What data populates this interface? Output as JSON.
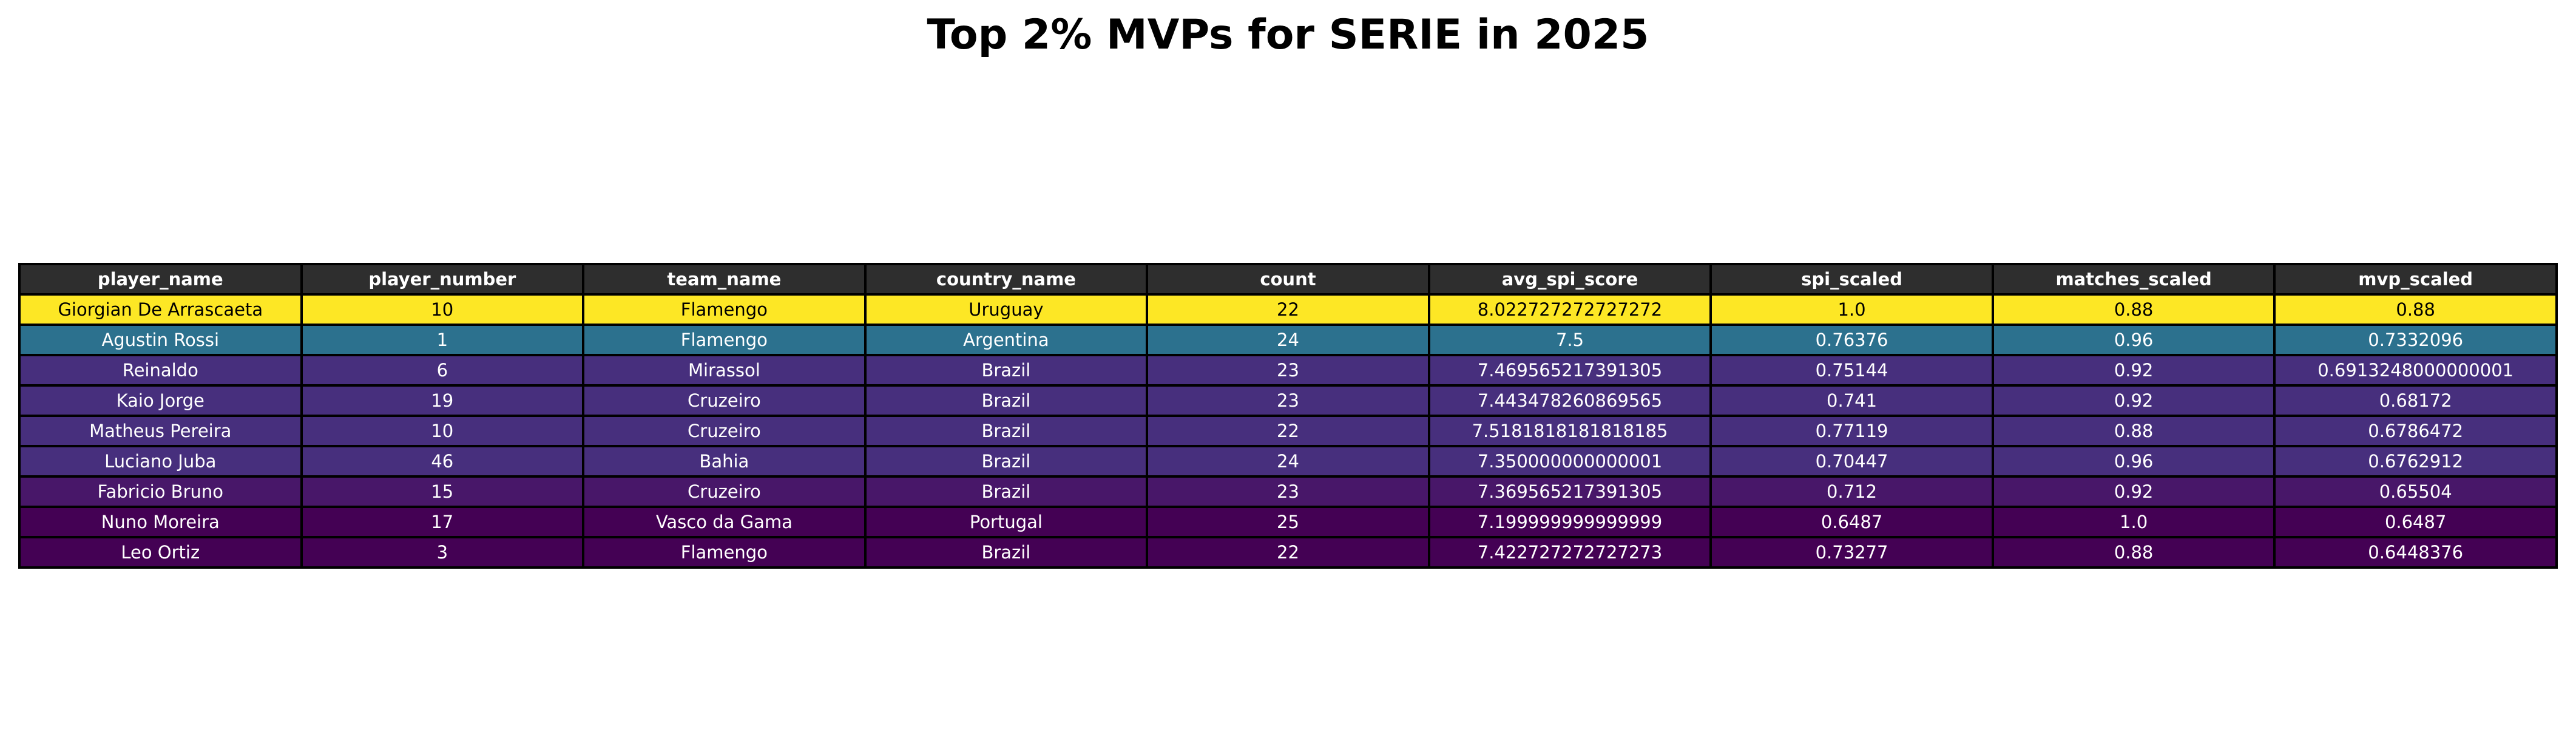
{
  "chart_data": {
    "type": "table",
    "title": "Top 2% MVPs for SERIE in 2025",
    "columns": [
      "player_name",
      "player_number",
      "team_name",
      "country_name",
      "count",
      "avg_spi_score",
      "spi_scaled",
      "matches_scaled",
      "mvp_scaled"
    ],
    "rows": [
      [
        "Giorgian De Arrascaeta",
        "10",
        "Flamengo",
        "Uruguay",
        "22",
        "8.022727272727272",
        "1.0",
        "0.88",
        "0.88"
      ],
      [
        "Agustin Rossi",
        "1",
        "Flamengo",
        "Argentina",
        "24",
        "7.5",
        "0.76376",
        "0.96",
        "0.7332096"
      ],
      [
        "Reinaldo",
        "6",
        "Mirassol",
        "Brazil",
        "23",
        "7.469565217391305",
        "0.75144",
        "0.92",
        "0.6913248000000001"
      ],
      [
        "Kaio Jorge",
        "19",
        "Cruzeiro",
        "Brazil",
        "23",
        "7.443478260869565",
        "0.741",
        "0.92",
        "0.68172"
      ],
      [
        "Matheus Pereira",
        "10",
        "Cruzeiro",
        "Brazil",
        "22",
        "7.5181818181818185",
        "0.77119",
        "0.88",
        "0.6786472"
      ],
      [
        "Luciano Juba",
        "46",
        "Bahia",
        "Brazil",
        "24",
        "7.350000000000001",
        "0.70447",
        "0.96",
        "0.6762912"
      ],
      [
        "Fabricio Bruno",
        "15",
        "Cruzeiro",
        "Brazil",
        "23",
        "7.369565217391305",
        "0.712",
        "0.92",
        "0.65504"
      ],
      [
        "Nuno Moreira",
        "17",
        "Vasco da Gama",
        "Portugal",
        "25",
        "7.199999999999999",
        "0.6487",
        "1.0",
        "0.6487"
      ],
      [
        "Leo Ortiz",
        "3",
        "Flamengo",
        "Brazil",
        "22",
        "7.422727272727273",
        "0.73277",
        "0.88",
        "0.6448376"
      ]
    ],
    "row_colors": [
      "#fde725",
      "#2c718e",
      "#472f7d",
      "#472f7d",
      "#472f7d",
      "#472f7d",
      "#481769",
      "#440154",
      "#440154"
    ],
    "row_text_colors": [
      "#000000",
      "#ffffff",
      "#ffffff",
      "#ffffff",
      "#ffffff",
      "#ffffff",
      "#ffffff",
      "#ffffff",
      "#ffffff"
    ],
    "header_color": "#2e2e2e",
    "header_text_color": "#ffffff"
  }
}
